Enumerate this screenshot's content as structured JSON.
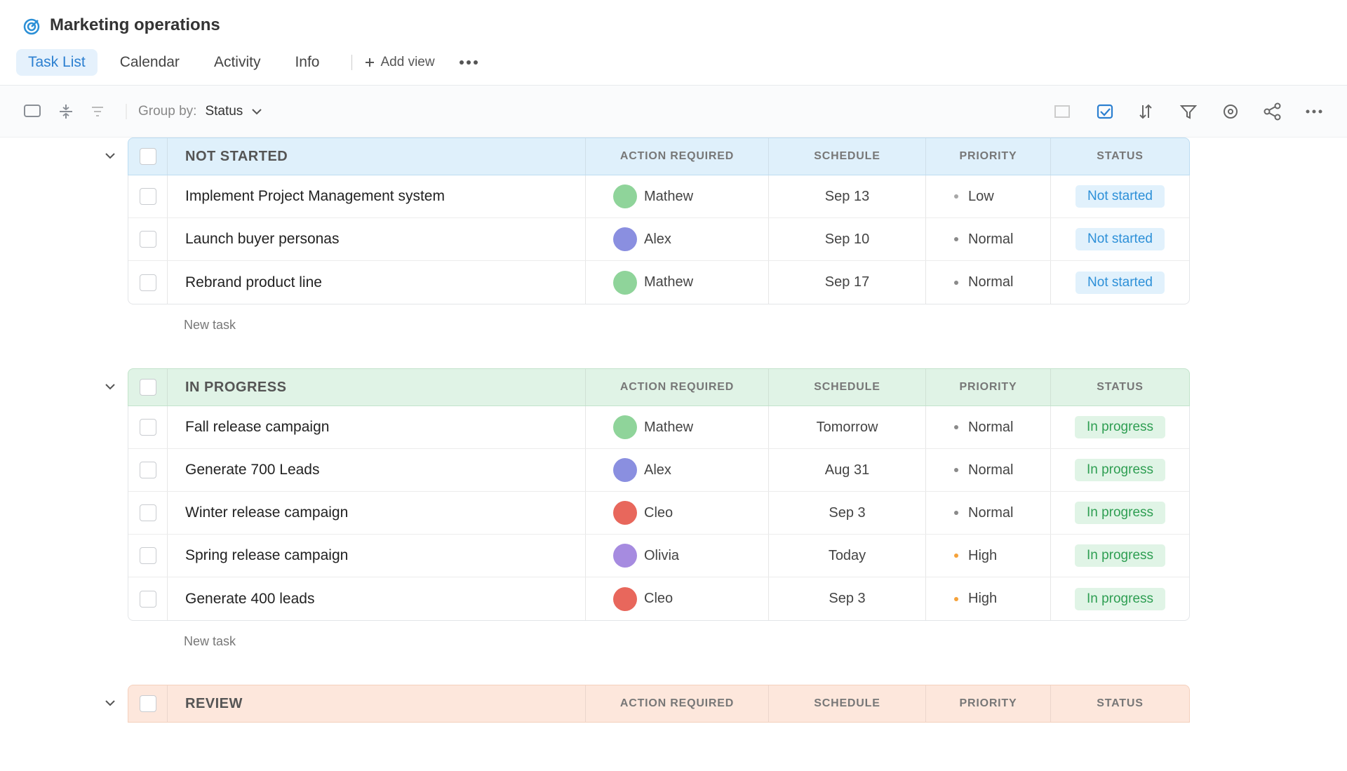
{
  "header": {
    "title": "Marketing operations",
    "tabs": [
      "Task List",
      "Calendar",
      "Activity",
      "Info"
    ],
    "active_tab": 0,
    "add_view": "Add view"
  },
  "toolbar": {
    "group_by_label": "Group by:",
    "group_by_value": "Status"
  },
  "columns": [
    "ACTION REQUIRED",
    "SCHEDULE",
    "PRIORITY",
    "STATUS"
  ],
  "new_task_label": "New task",
  "groups": [
    {
      "title": "NOT STARTED",
      "header_color": "#dff0fb",
      "border_color": "#bcdcf1",
      "status_bg": "#e1f1fc",
      "status_color": "#2d90d8",
      "rows": [
        {
          "name": "Implement Project Management system",
          "assignee": "Mathew",
          "avatar_color": "#8fd49a",
          "schedule": "Sep 13",
          "priority": "Low",
          "priority_color": "#a7a7a7",
          "status": "Not started"
        },
        {
          "name": "Launch buyer personas",
          "assignee": "Alex",
          "avatar_color": "#8a8fe0",
          "schedule": "Sep 10",
          "priority": "Normal",
          "priority_color": "#8a8a8a",
          "status": "Not started"
        },
        {
          "name": "Rebrand product line",
          "assignee": "Mathew",
          "avatar_color": "#8fd49a",
          "schedule": "Sep 17",
          "priority": "Normal",
          "priority_color": "#8a8a8a",
          "status": "Not started"
        }
      ]
    },
    {
      "title": "IN PROGRESS",
      "header_color": "#e0f3e6",
      "border_color": "#c2e3cb",
      "status_bg": "#e0f4e6",
      "status_color": "#2e9e52",
      "rows": [
        {
          "name": "Fall release campaign",
          "assignee": "Mathew",
          "avatar_color": "#8fd49a",
          "schedule": "Tomorrow",
          "priority": "Normal",
          "priority_color": "#8a8a8a",
          "status": "In progress"
        },
        {
          "name": "Generate 700 Leads",
          "assignee": "Alex",
          "avatar_color": "#8a8fe0",
          "schedule": "Aug 31",
          "priority": "Normal",
          "priority_color": "#8a8a8a",
          "status": "In progress"
        },
        {
          "name": "Winter release campaign",
          "assignee": "Cleo",
          "avatar_color": "#e8675c",
          "schedule": "Sep 3",
          "priority": "Normal",
          "priority_color": "#8a8a8a",
          "status": "In progress"
        },
        {
          "name": "Spring release campaign",
          "assignee": "Olivia",
          "avatar_color": "#a68be0",
          "schedule": "Today",
          "priority": "High",
          "priority_color": "#f5a23a",
          "status": "In progress"
        },
        {
          "name": "Generate 400 leads",
          "assignee": "Cleo",
          "avatar_color": "#e8675c",
          "schedule": "Sep 3",
          "priority": "High",
          "priority_color": "#f5a23a",
          "status": "In progress"
        }
      ]
    },
    {
      "title": "REVIEW",
      "header_color": "#fde7dc",
      "border_color": "#f4d0bd",
      "status_bg": "#fde1d4",
      "status_color": "#e0743f",
      "rows": []
    }
  ]
}
